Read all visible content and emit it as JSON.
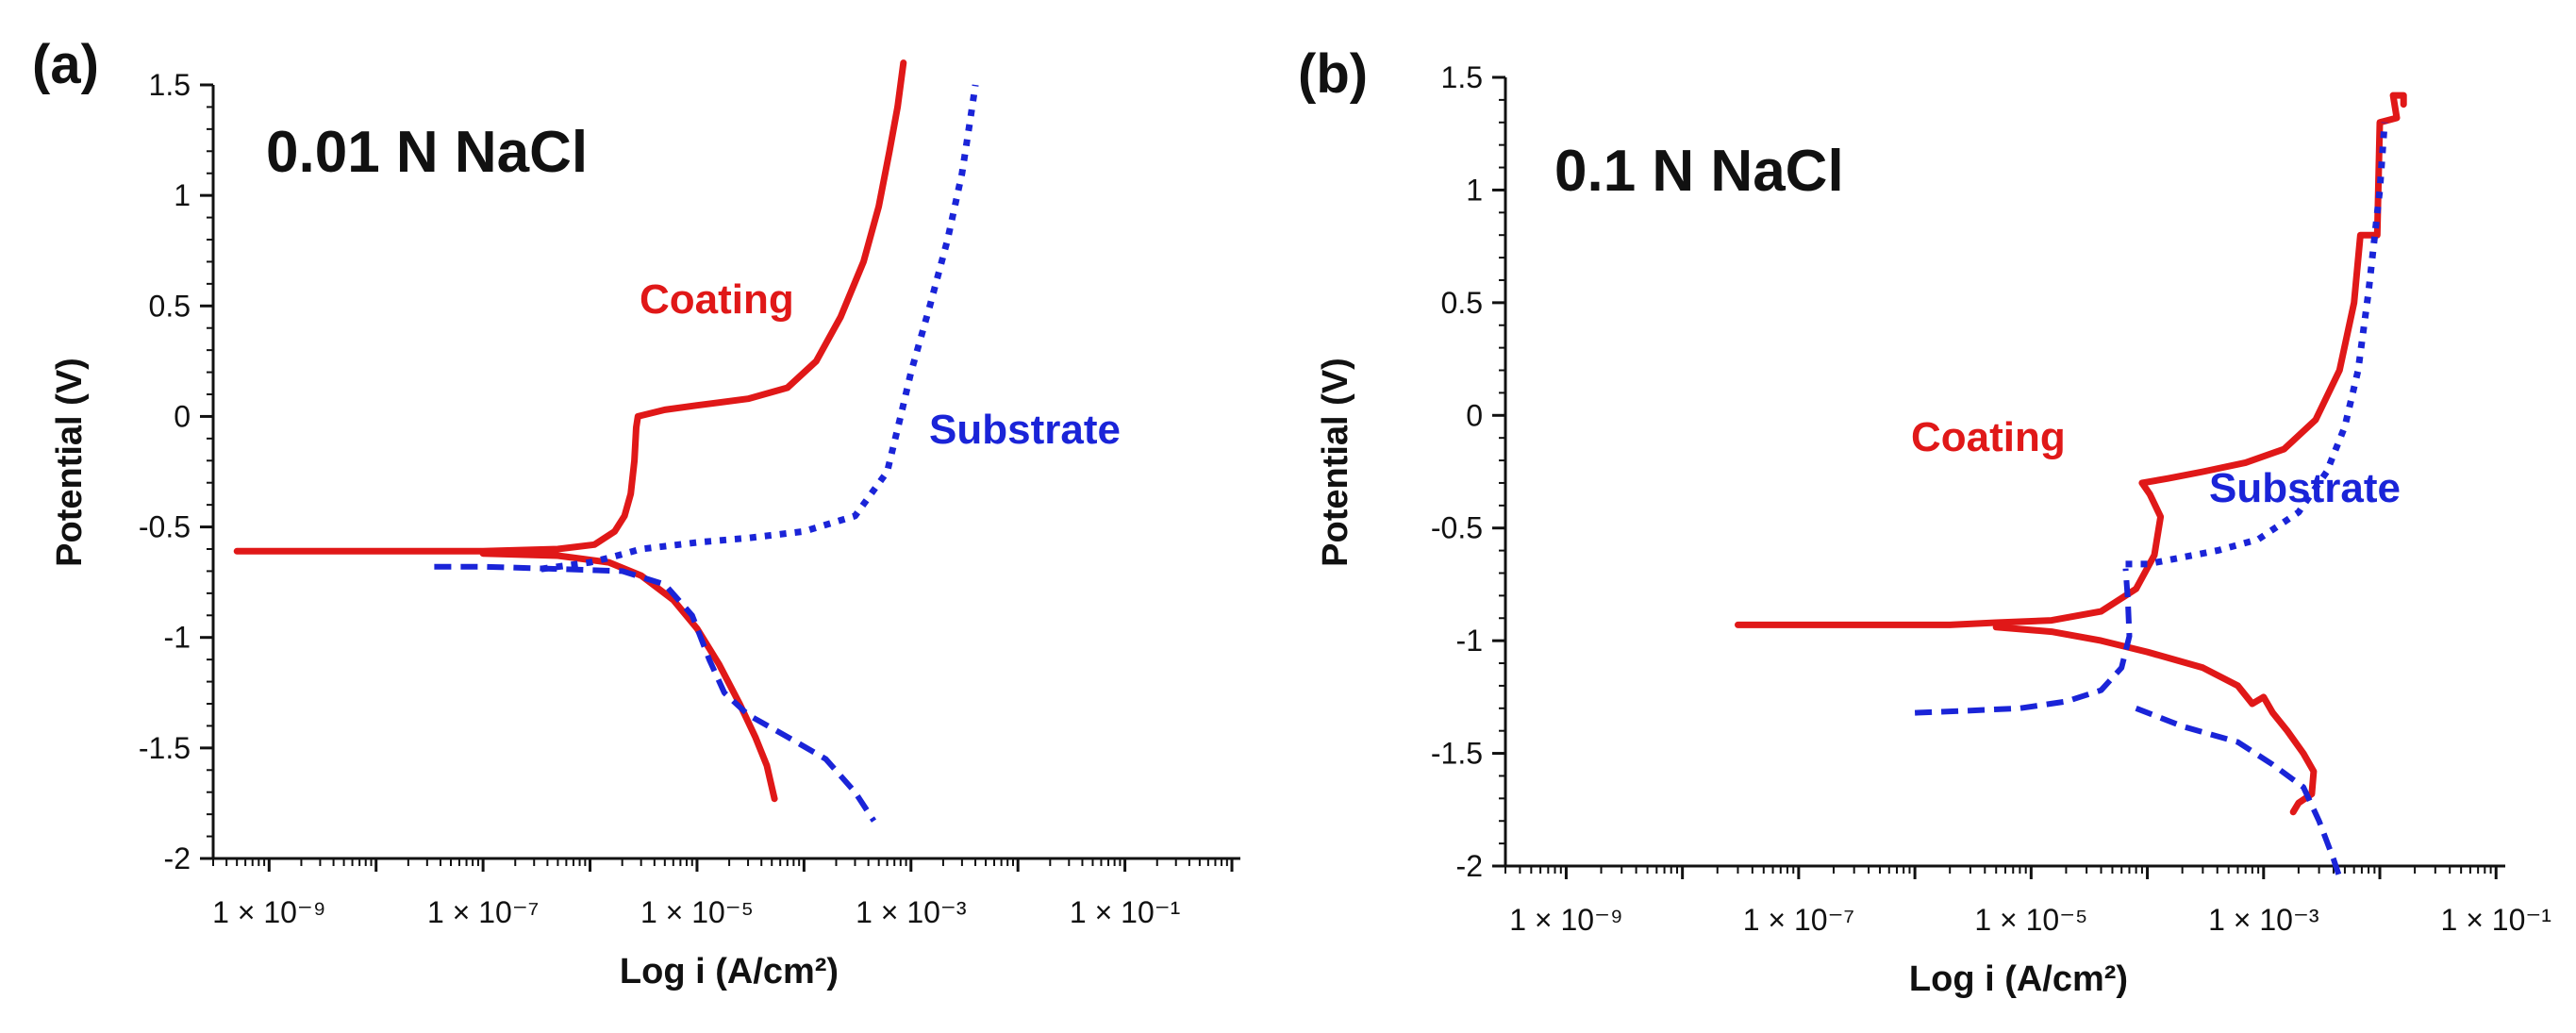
{
  "colors": {
    "coating": "#e01818",
    "substrate": "#1a24d8",
    "axis": "#111111"
  },
  "chart_data": [
    {
      "type": "line",
      "panel_label": "(a)",
      "condition": "0.01 N NaCl",
      "xlabel": "Log i (A/cm²)",
      "ylabel": "Potential (V)",
      "x_scale": "log",
      "xlim": [
        3e-10,
        1.2
      ],
      "ylim": [
        -2,
        1.5
      ],
      "yticks": [
        "1.5",
        "1",
        "0.5",
        "0",
        "-0.5",
        "-1",
        "-1.5",
        "-2"
      ],
      "xticks": [
        {
          "value": 1e-09,
          "label": "1 × 10⁻⁹"
        },
        {
          "value": 1e-07,
          "label": "1 × 10⁻⁷"
        },
        {
          "value": 1e-05,
          "label": "1 × 10⁻⁵"
        },
        {
          "value": 0.001,
          "label": "1 × 10⁻³"
        },
        {
          "value": 0.1,
          "label": "1 × 10⁻¹"
        }
      ],
      "annotations": [
        {
          "text": "Coating",
          "series": "coating"
        },
        {
          "text": "Substrate",
          "series": "substrate"
        }
      ],
      "series": [
        {
          "name": "Coating",
          "color_key": "coating",
          "style": "solid",
          "points": [
            [
              5e-10,
              -0.61
            ],
            [
              1e-09,
              -0.61
            ],
            [
              1e-08,
              -0.61
            ],
            [
              5e-08,
              -0.61
            ],
            [
              1e-07,
              -0.61
            ],
            [
              5e-07,
              -0.6
            ],
            [
              1.1e-06,
              -0.58
            ],
            [
              1.7e-06,
              -0.52
            ],
            [
              2.1e-06,
              -0.45
            ],
            [
              2.4e-06,
              -0.35
            ],
            [
              2.6e-06,
              -0.2
            ],
            [
              2.7e-06,
              -0.05
            ],
            [
              2.8e-06,
              0.0
            ],
            [
              5e-06,
              0.03
            ],
            [
              1e-05,
              0.05
            ],
            [
              3e-05,
              0.08
            ],
            [
              7e-05,
              0.13
            ],
            [
              0.00013,
              0.25
            ],
            [
              0.00022,
              0.45
            ],
            [
              0.00036,
              0.7
            ],
            [
              0.0005,
              0.95
            ],
            [
              0.00063,
              1.2
            ],
            [
              0.00075,
              1.4
            ],
            [
              0.00085,
              1.6
            ]
          ]
        },
        {
          "name": "Coating",
          "color_key": "coating",
          "style": "solid",
          "points": [
            [
              1e-07,
              -0.62
            ],
            [
              5e-07,
              -0.63
            ],
            [
              1.5e-06,
              -0.66
            ],
            [
              3e-06,
              -0.72
            ],
            [
              6e-06,
              -0.83
            ],
            [
              1e-05,
              -0.96
            ],
            [
              1.6e-05,
              -1.12
            ],
            [
              2.5e-05,
              -1.3
            ],
            [
              3.5e-05,
              -1.45
            ],
            [
              4.5e-05,
              -1.58
            ],
            [
              5.3e-05,
              -1.73
            ]
          ]
        },
        {
          "name": "Substrate",
          "color_key": "substrate",
          "style": "dotted",
          "points": [
            [
              3.5e-07,
              -0.69
            ],
            [
              5e-07,
              -0.68
            ],
            [
              1e-06,
              -0.66
            ],
            [
              1.5e-06,
              -0.64
            ],
            [
              3e-06,
              -0.6
            ],
            [
              1e-05,
              -0.57
            ],
            [
              3e-05,
              -0.55
            ],
            [
              0.0001,
              -0.52
            ],
            [
              0.0003,
              -0.45
            ],
            [
              0.0006,
              -0.25
            ],
            [
              0.0008,
              0.0
            ],
            [
              0.001,
              0.2
            ],
            [
              0.0015,
              0.5
            ],
            [
              0.0022,
              0.8
            ],
            [
              0.003,
              1.1
            ],
            [
              0.0036,
              1.35
            ],
            [
              0.004,
              1.5
            ]
          ]
        },
        {
          "name": "Substrate",
          "color_key": "substrate",
          "style": "dashed",
          "points": [
            [
              3.5e-08,
              -0.68
            ],
            [
              1e-07,
              -0.68
            ],
            [
              5e-07,
              -0.69
            ],
            [
              2e-06,
              -0.7
            ],
            [
              5e-06,
              -0.76
            ],
            [
              9e-06,
              -0.9
            ],
            [
              1.3e-05,
              -1.1
            ],
            [
              1.8e-05,
              -1.25
            ],
            [
              3e-05,
              -1.35
            ],
            [
              7e-05,
              -1.45
            ],
            [
              0.00016,
              -1.55
            ],
            [
              0.0003,
              -1.7
            ],
            [
              0.00045,
              -1.83
            ]
          ]
        }
      ]
    },
    {
      "type": "line",
      "panel_label": "(b)",
      "condition": "0.1 N NaCl",
      "xlabel": "Log i (A/cm²)",
      "ylabel": "Potential (V)",
      "x_scale": "log",
      "xlim": [
        3e-10,
        0.12
      ],
      "ylim": [
        -2,
        1.5
      ],
      "yticks": [
        "1.5",
        "1",
        "0.5",
        "0",
        "-0.5",
        "-1",
        "-1.5",
        "-2"
      ],
      "xticks": [
        {
          "value": 1e-09,
          "label": "1 × 10⁻⁹"
        },
        {
          "value": 1e-07,
          "label": "1 × 10⁻⁷"
        },
        {
          "value": 1e-05,
          "label": "1 × 10⁻⁵"
        },
        {
          "value": 0.001,
          "label": "1 × 10⁻³"
        },
        {
          "value": 0.1,
          "label": "1 × 10⁻¹"
        }
      ],
      "annotations": [
        {
          "text": "Coating",
          "series": "coating"
        },
        {
          "text": "Substrate",
          "series": "substrate"
        }
      ],
      "series": [
        {
          "name": "Coating",
          "color_key": "coating",
          "style": "solid",
          "points": [
            [
              3e-08,
              -0.93
            ],
            [
              1e-07,
              -0.93
            ],
            [
              5e-07,
              -0.93
            ],
            [
              2e-06,
              -0.93
            ],
            [
              5e-06,
              -0.92
            ],
            [
              1.5e-05,
              -0.91
            ],
            [
              4e-05,
              -0.87
            ],
            [
              8e-05,
              -0.77
            ],
            [
              0.000115,
              -0.62
            ],
            [
              0.00013,
              -0.45
            ],
            [
              0.000105,
              -0.35
            ],
            [
              9e-05,
              -0.3
            ],
            [
              0.00015,
              -0.28
            ],
            [
              0.0003,
              -0.25
            ],
            [
              0.0007,
              -0.21
            ],
            [
              0.0015,
              -0.15
            ],
            [
              0.0028,
              -0.02
            ],
            [
              0.0045,
              0.2
            ],
            [
              0.006,
              0.5
            ],
            [
              0.0068,
              0.8
            ],
            [
              0.0095,
              0.8
            ],
            [
              0.01,
              1.3
            ],
            [
              0.014,
              1.32
            ],
            [
              0.013,
              1.42
            ],
            [
              0.016,
              1.42
            ],
            [
              0.016,
              1.38
            ]
          ]
        },
        {
          "name": "Coating",
          "color_key": "coating",
          "style": "solid",
          "points": [
            [
              5e-06,
              -0.94
            ],
            [
              1.5e-05,
              -0.96
            ],
            [
              4e-05,
              -1.0
            ],
            [
              0.0001,
              -1.05
            ],
            [
              0.0003,
              -1.12
            ],
            [
              0.0006,
              -1.2
            ],
            [
              0.0008,
              -1.28
            ],
            [
              0.001,
              -1.25
            ],
            [
              0.0012,
              -1.32
            ],
            [
              0.0016,
              -1.4
            ],
            [
              0.0022,
              -1.5
            ],
            [
              0.0027,
              -1.58
            ],
            [
              0.0026,
              -1.68
            ],
            [
              0.002,
              -1.72
            ],
            [
              0.0018,
              -1.76
            ]
          ]
        },
        {
          "name": "Substrate",
          "color_key": "substrate",
          "style": "dotted",
          "points": [
            [
              6.5e-05,
              -0.66
            ],
            [
              0.0001,
              -0.66
            ],
            [
              0.0002,
              -0.63
            ],
            [
              0.0004,
              -0.6
            ],
            [
              0.0009,
              -0.55
            ],
            [
              0.002,
              -0.43
            ],
            [
              0.0035,
              -0.25
            ],
            [
              0.005,
              -0.05
            ],
            [
              0.0065,
              0.2
            ],
            [
              0.008,
              0.55
            ],
            [
              0.01,
              1.0
            ],
            [
              0.011,
              1.3
            ]
          ]
        },
        {
          "name": "Substrate",
          "color_key": "substrate",
          "style": "dashed",
          "points": [
            [
              1e-06,
              -1.32
            ],
            [
              3e-06,
              -1.31
            ],
            [
              8e-06,
              -1.3
            ],
            [
              2e-05,
              -1.27
            ],
            [
              4e-05,
              -1.22
            ],
            [
              6e-05,
              -1.12
            ],
            [
              7e-05,
              -0.98
            ],
            [
              6.8e-05,
              -0.82
            ],
            [
              6.5e-05,
              -0.68
            ]
          ]
        },
        {
          "name": "Substrate",
          "color_key": "substrate",
          "style": "dashed",
          "points": [
            [
              8e-05,
              -1.3
            ],
            [
              0.0002,
              -1.38
            ],
            [
              0.0006,
              -1.45
            ],
            [
              0.0012,
              -1.55
            ],
            [
              0.0022,
              -1.65
            ],
            [
              0.003,
              -1.8
            ],
            [
              0.004,
              -1.97
            ],
            [
              0.0045,
              -2.05
            ]
          ]
        }
      ]
    }
  ]
}
